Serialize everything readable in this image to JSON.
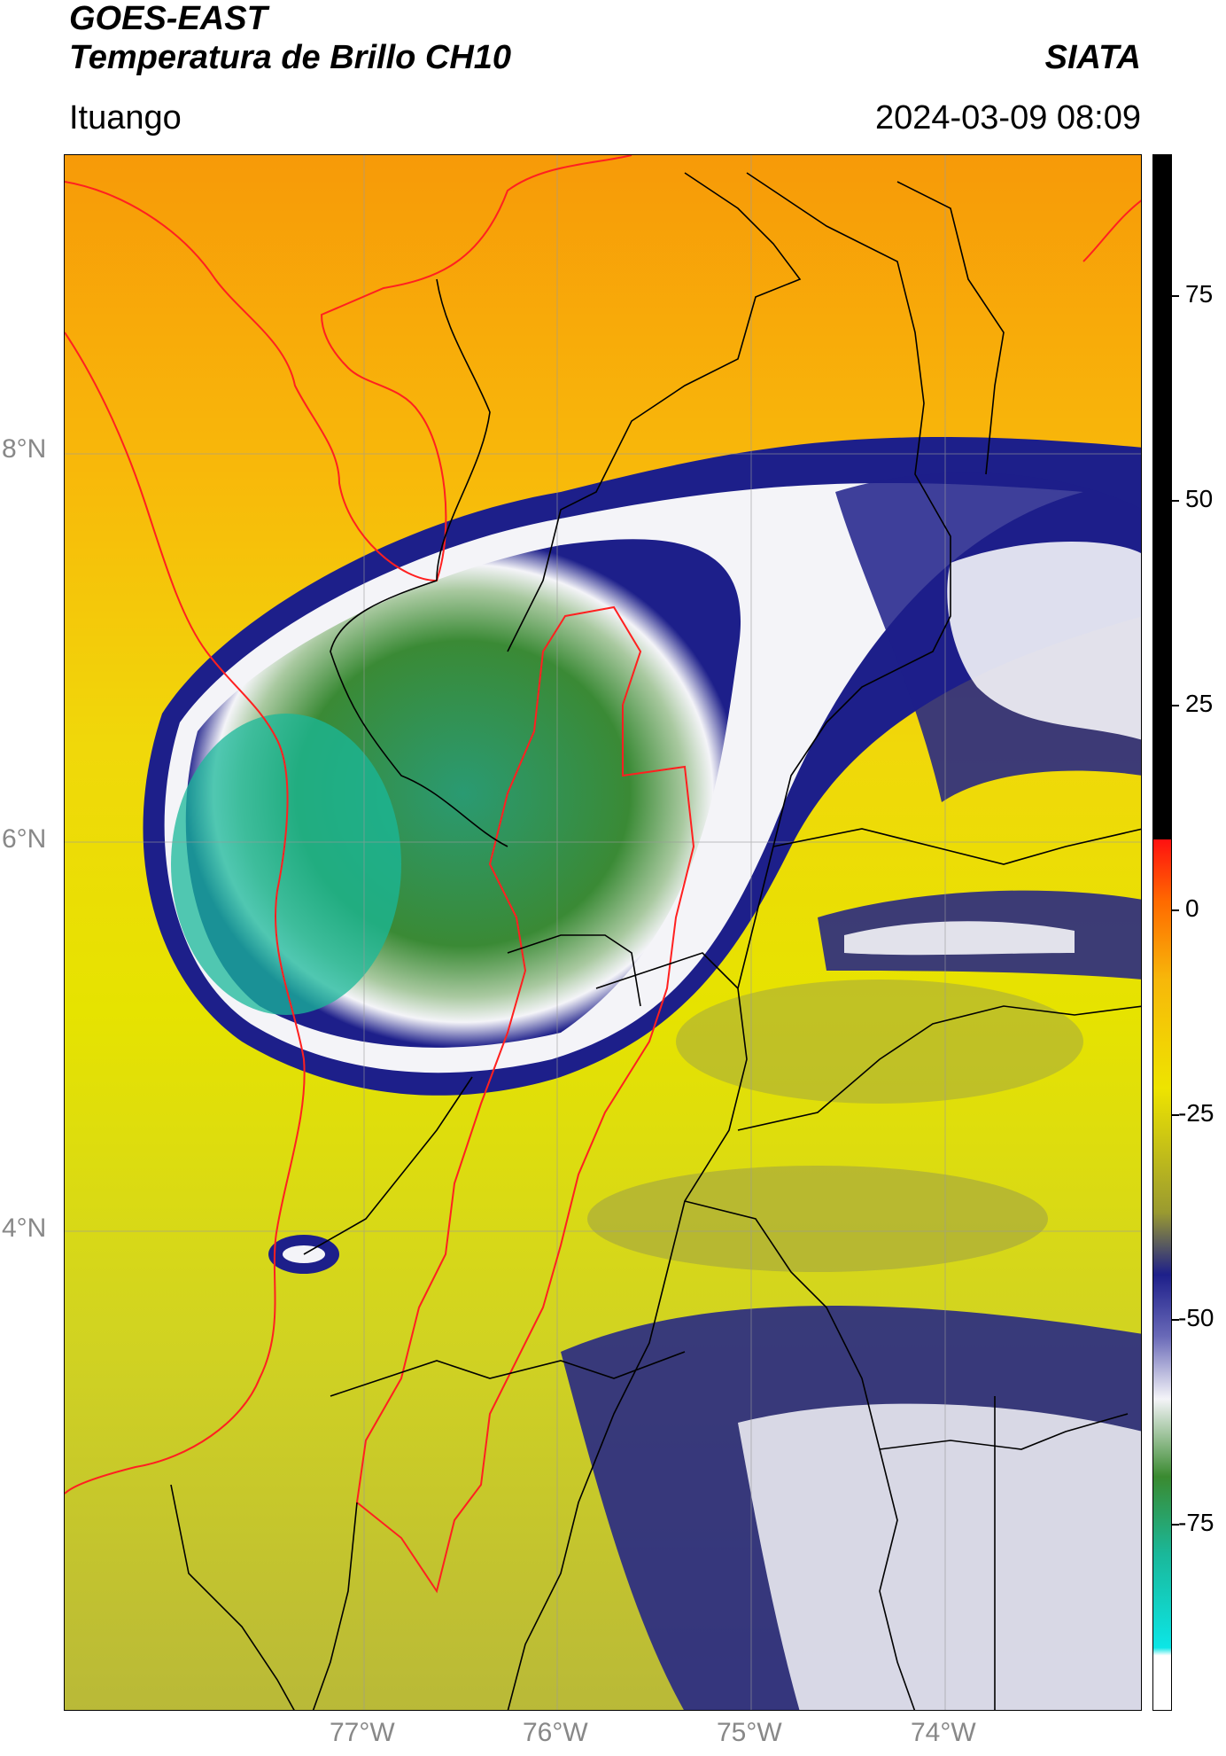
{
  "header": {
    "satellite": "GOES-EAST",
    "product": "Temperatura de Brillo CH10",
    "agency": "SIATA",
    "location": "Ituango",
    "datetime": "2024-03-09 08:09"
  },
  "map": {
    "lat_labels": [
      "8°N",
      "6°N",
      "4°N"
    ],
    "lon_labels": [
      "77°W",
      "76°W",
      "75°W",
      "74°W"
    ],
    "basemap_colors": {
      "warm": "#f7a10a",
      "mild": "#e8e200",
      "cool": "#b6b83a",
      "cold": "#1d1f8a",
      "white": "#f3f3f6",
      "green": "#3a8a30",
      "teal": "#1ab89a"
    },
    "outline_colors": {
      "coast": "#ff2020",
      "borders": "#000000",
      "highlight": "#ff2020"
    }
  },
  "colorbar": {
    "labels": [
      "75",
      "50",
      "25",
      "0",
      "-25",
      "-50",
      "-75"
    ],
    "values": [
      75,
      50,
      25,
      0,
      -25,
      -50,
      -75
    ],
    "range": [
      -95,
      95
    ]
  }
}
